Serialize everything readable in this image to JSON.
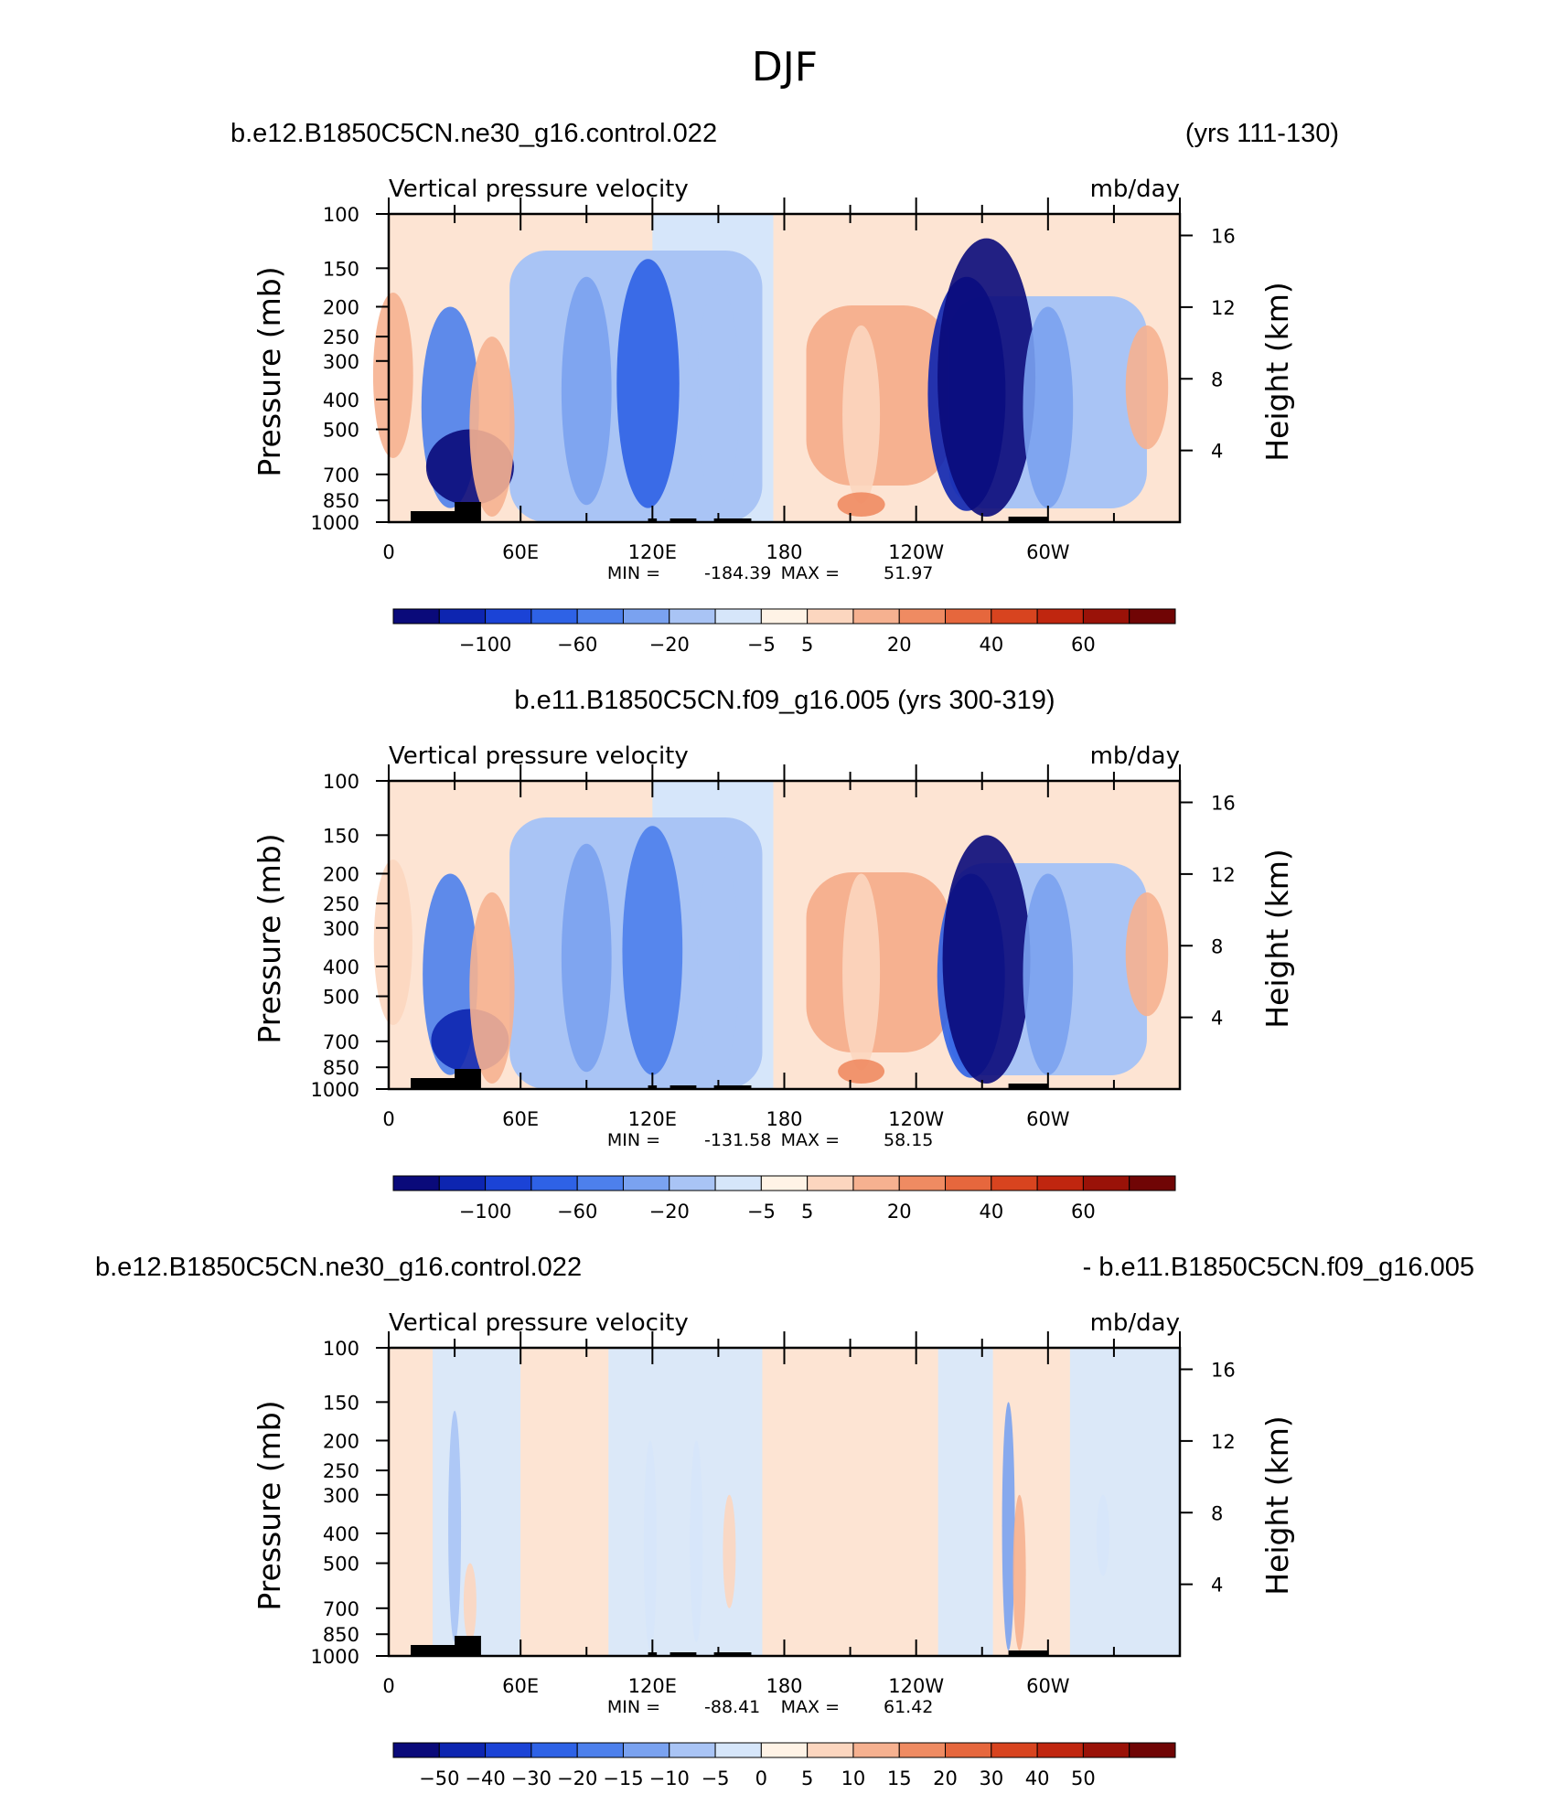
{
  "figure": {
    "title": "DJF"
  },
  "chart_data": [
    {
      "type": "heatmap",
      "header_left": "b.e12.B1850C5CN.ne30_g16.control.022",
      "header_right": "(yrs 111-130)",
      "title": "Vertical pressure velocity",
      "units": "mb/day",
      "ylabel": "Pressure (mb)",
      "y2label": "Height (km)",
      "x_ticks": [
        "0",
        "60E",
        "120E",
        "180",
        "120W",
        "60W"
      ],
      "x_tick_values": [
        0,
        60,
        120,
        180,
        240,
        300
      ],
      "xlim": [
        0,
        360
      ],
      "y_ticks": [
        "100",
        "150",
        "200",
        "250",
        "300",
        "400",
        "500",
        "700",
        "850",
        "1000"
      ],
      "y_tick_values": [
        100,
        150,
        200,
        250,
        300,
        400,
        500,
        700,
        850,
        1000
      ],
      "ylim": [
        1000,
        100
      ],
      "y2_ticks": [
        "16",
        "12",
        "8",
        "4"
      ],
      "y2_tick_values": [
        16,
        12,
        8,
        4
      ],
      "min_label": "MIN =",
      "min": "-184.39",
      "max_label": "MAX =",
      "max": "51.97",
      "colorbar_labels": [
        "−100",
        "−60",
        "−20",
        "−5",
        "5",
        "20",
        "40",
        "60"
      ],
      "colorbar_colors": [
        "#0a0a7a",
        "#0d25b0",
        "#1b43d6",
        "#2e62e6",
        "#4d80ec",
        "#7aa2f0",
        "#a9c4f5",
        "#d6e6fa",
        "#fff3e6",
        "#fcd6bf",
        "#f6b190",
        "#ef8b62",
        "#e6673d",
        "#d8441f",
        "#c0260f",
        "#9a1208",
        "#700505"
      ],
      "features": [
        {
          "lon": 2,
          "p_top": 180,
          "p_bot": 620,
          "value": 25
        },
        {
          "lon": 28,
          "p_top": 200,
          "p_bot": 900,
          "value": -60
        },
        {
          "lon": 37,
          "p_top": 500,
          "p_bot": 880,
          "value": -120
        },
        {
          "lon": 47,
          "p_top": 250,
          "p_bot": 960,
          "value": 35
        },
        {
          "lon": 90,
          "p_top": 160,
          "p_bot": 880,
          "value": -45
        },
        {
          "lon": 118,
          "p_top": 140,
          "p_bot": 900,
          "value": -70
        },
        {
          "lon": 150,
          "p_top": 170,
          "p_bot": 880,
          "value": -30
        },
        {
          "lon": 215,
          "p_top": 230,
          "p_bot": 870,
          "value": 20
        },
        {
          "lon": 215,
          "p_top": 800,
          "p_bot": 960,
          "value": 40
        },
        {
          "lon": 263,
          "p_top": 160,
          "p_bot": 920,
          "value": -100
        },
        {
          "lon": 272,
          "p_top": 120,
          "p_bot": 960,
          "value": -140
        },
        {
          "lon": 300,
          "p_top": 200,
          "p_bot": 900,
          "value": -45
        },
        {
          "lon": 345,
          "p_top": 230,
          "p_bot": 580,
          "value": 30
        }
      ]
    },
    {
      "type": "heatmap",
      "header_center": "b.e11.B1850C5CN.f09_g16.005 (yrs 300-319)",
      "title": "Vertical pressure velocity",
      "units": "mb/day",
      "ylabel": "Pressure (mb)",
      "y2label": "Height (km)",
      "x_ticks": [
        "0",
        "60E",
        "120E",
        "180",
        "120W",
        "60W"
      ],
      "x_tick_values": [
        0,
        60,
        120,
        180,
        240,
        300
      ],
      "xlim": [
        0,
        360
      ],
      "y_ticks": [
        "100",
        "150",
        "200",
        "250",
        "300",
        "400",
        "500",
        "700",
        "850",
        "1000"
      ],
      "y_tick_values": [
        100,
        150,
        200,
        250,
        300,
        400,
        500,
        700,
        850,
        1000
      ],
      "ylim": [
        1000,
        100
      ],
      "y2_ticks": [
        "16",
        "12",
        "8",
        "4"
      ],
      "y2_tick_values": [
        16,
        12,
        8,
        4
      ],
      "min_label": "MIN =",
      "min": "-131.58",
      "max_label": "MAX =",
      "max": "58.15",
      "colorbar_labels": [
        "−100",
        "−60",
        "−20",
        "−5",
        "5",
        "20",
        "40",
        "60"
      ],
      "colorbar_colors": [
        "#0a0a7a",
        "#0d25b0",
        "#1b43d6",
        "#2e62e6",
        "#4d80ec",
        "#7aa2f0",
        "#a9c4f5",
        "#d6e6fa",
        "#fff3e6",
        "#fcd6bf",
        "#f6b190",
        "#ef8b62",
        "#e6673d",
        "#d8441f",
        "#c0260f",
        "#9a1208",
        "#700505"
      ],
      "features": [
        {
          "lon": 2,
          "p_top": 180,
          "p_bot": 620,
          "value": 22
        },
        {
          "lon": 28,
          "p_top": 200,
          "p_bot": 900,
          "value": -55
        },
        {
          "lon": 37,
          "p_top": 550,
          "p_bot": 880,
          "value": -100
        },
        {
          "lon": 47,
          "p_top": 230,
          "p_bot": 960,
          "value": 35
        },
        {
          "lon": 90,
          "p_top": 160,
          "p_bot": 880,
          "value": -45
        },
        {
          "lon": 120,
          "p_top": 140,
          "p_bot": 900,
          "value": -65
        },
        {
          "lon": 150,
          "p_top": 170,
          "p_bot": 880,
          "value": -30
        },
        {
          "lon": 215,
          "p_top": 200,
          "p_bot": 870,
          "value": 20
        },
        {
          "lon": 215,
          "p_top": 800,
          "p_bot": 960,
          "value": 38
        },
        {
          "lon": 265,
          "p_top": 200,
          "p_bot": 920,
          "value": -80
        },
        {
          "lon": 272,
          "p_top": 150,
          "p_bot": 960,
          "value": -120
        },
        {
          "lon": 300,
          "p_top": 200,
          "p_bot": 900,
          "value": -45
        },
        {
          "lon": 345,
          "p_top": 230,
          "p_bot": 580,
          "value": 30
        }
      ]
    },
    {
      "type": "heatmap",
      "header_left": "b.e12.B1850C5CN.ne30_g16.control.022",
      "header_right": "- b.e11.B1850C5CN.f09_g16.005",
      "title": "Vertical pressure velocity",
      "units": "mb/day",
      "ylabel": "Pressure (mb)",
      "y2label": "Height (km)",
      "x_ticks": [
        "0",
        "60E",
        "120E",
        "180",
        "120W",
        "60W"
      ],
      "x_tick_values": [
        0,
        60,
        120,
        180,
        240,
        300
      ],
      "xlim": [
        0,
        360
      ],
      "y_ticks": [
        "100",
        "150",
        "200",
        "250",
        "300",
        "400",
        "500",
        "700",
        "850",
        "1000"
      ],
      "y_tick_values": [
        100,
        150,
        200,
        250,
        300,
        400,
        500,
        700,
        850,
        1000
      ],
      "ylim": [
        1000,
        100
      ],
      "y2_ticks": [
        "16",
        "12",
        "8",
        "4"
      ],
      "y2_tick_values": [
        16,
        12,
        8,
        4
      ],
      "min_label": "MIN =",
      "min": "-88.41",
      "max_label": "MAX =",
      "max": "61.42",
      "colorbar_labels": [
        "−50",
        "−40",
        "−30",
        "−20",
        "−15",
        "−10",
        "−5",
        "0",
        "5",
        "10",
        "15",
        "20",
        "30",
        "40",
        "50"
      ],
      "colorbar_colors": [
        "#0a0a7a",
        "#0d25b0",
        "#1b43d6",
        "#2e62e6",
        "#4d80ec",
        "#7aa2f0",
        "#a9c4f5",
        "#d6e6fa",
        "#fff3e6",
        "#fcd6bf",
        "#f6b190",
        "#ef8b62",
        "#e6673d",
        "#d8441f",
        "#c0260f",
        "#9a1208",
        "#700505"
      ],
      "features": [
        {
          "lon": 30,
          "p_top": 160,
          "p_bot": 900,
          "value": -30
        },
        {
          "lon": 37,
          "p_top": 500,
          "p_bot": 900,
          "value": 20
        },
        {
          "lon": 119,
          "p_top": 200,
          "p_bot": 960,
          "value": -20
        },
        {
          "lon": 140,
          "p_top": 200,
          "p_bot": 900,
          "value": -15
        },
        {
          "lon": 155,
          "p_top": 300,
          "p_bot": 700,
          "value": 10
        },
        {
          "lon": 282,
          "p_top": 150,
          "p_bot": 960,
          "value": -45
        },
        {
          "lon": 287,
          "p_top": 300,
          "p_bot": 960,
          "value": 25
        },
        {
          "lon": 325,
          "p_top": 300,
          "p_bot": 550,
          "value": -10
        }
      ]
    }
  ]
}
